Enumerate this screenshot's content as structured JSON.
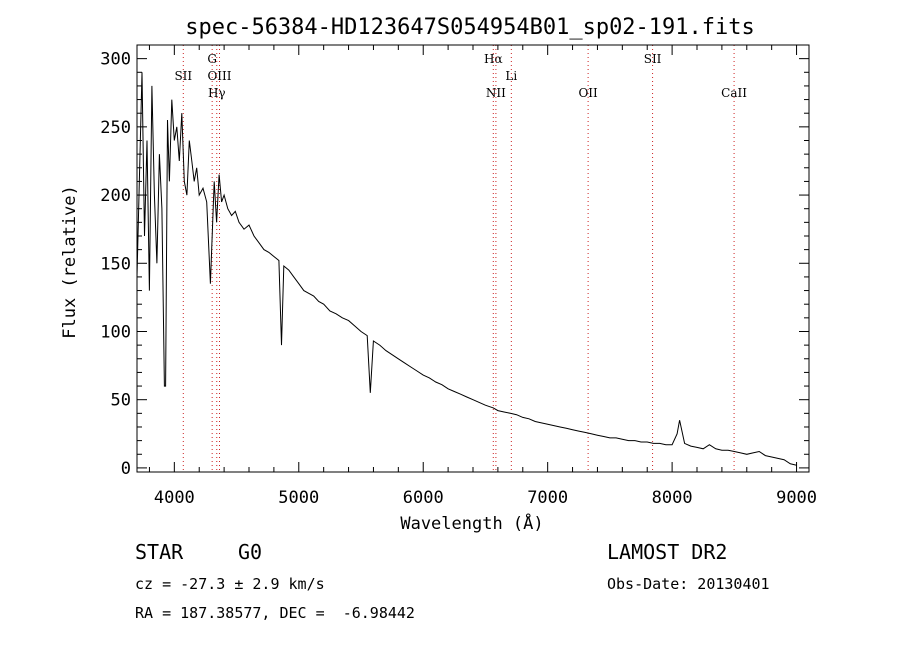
{
  "chart_data": {
    "type": "line",
    "title": "spec-56384-HD123647S054954B01_sp02-191.fits",
    "xlabel": "Wavelength (Å)",
    "ylabel": "Flux (relative)",
    "xlim": [
      3700,
      9100
    ],
    "ylim": [
      -3,
      310
    ],
    "x_ticks": [
      4000,
      5000,
      6000,
      7000,
      8000,
      9000
    ],
    "y_ticks": [
      0,
      50,
      100,
      150,
      200,
      250,
      300
    ],
    "grid": false,
    "series": [
      {
        "x": [
          3700,
          3720,
          3740,
          3760,
          3780,
          3800,
          3820,
          3840,
          3860,
          3880,
          3900,
          3920,
          3930,
          3945,
          3960,
          3980,
          4000,
          4020,
          4040,
          4060,
          4080,
          4101,
          4120,
          4140,
          4160,
          4180,
          4200,
          4230,
          4260,
          4290,
          4320,
          4340,
          4360,
          4380,
          4400,
          4430,
          4460,
          4490,
          4520,
          4560,
          4600,
          4640,
          4680,
          4720,
          4760,
          4800,
          4840,
          4861,
          4880,
          4920,
          4960,
          5000,
          5040,
          5080,
          5120,
          5160,
          5200,
          5250,
          5300,
          5350,
          5400,
          5450,
          5500,
          5550,
          5575,
          5600,
          5650,
          5700,
          5750,
          5800,
          5850,
          5900,
          5950,
          6000,
          6050,
          6100,
          6150,
          6200,
          6250,
          6300,
          6350,
          6400,
          6450,
          6500,
          6563,
          6600,
          6650,
          6700,
          6750,
          6800,
          6850,
          6900,
          6950,
          7000,
          7050,
          7100,
          7150,
          7200,
          7250,
          7300,
          7350,
          7400,
          7450,
          7500,
          7550,
          7600,
          7650,
          7700,
          7750,
          7800,
          7850,
          7900,
          7950,
          8000,
          8040,
          8060,
          8100,
          8150,
          8200,
          8250,
          8300,
          8350,
          8400,
          8450,
          8500,
          8550,
          8600,
          8650,
          8700,
          8750,
          8800,
          8850,
          8900,
          8950,
          9000
        ],
        "y": [
          140,
          215,
          290,
          170,
          240,
          130,
          280,
          200,
          150,
          230,
          190,
          60,
          60,
          255,
          210,
          270,
          240,
          250,
          225,
          260,
          210,
          200,
          240,
          225,
          210,
          220,
          200,
          205,
          195,
          135,
          210,
          180,
          215,
          195,
          200,
          190,
          185,
          188,
          180,
          175,
          178,
          170,
          165,
          160,
          158,
          155,
          152,
          90,
          148,
          145,
          140,
          135,
          130,
          128,
          126,
          122,
          120,
          115,
          113,
          110,
          108,
          104,
          100,
          97,
          55,
          93,
          90,
          86,
          83,
          80,
          77,
          74,
          71,
          68,
          66,
          63,
          61,
          58,
          56,
          54,
          52,
          50,
          48,
          46,
          44,
          42,
          41,
          40,
          39,
          37,
          36,
          34,
          33,
          32,
          31,
          30,
          29,
          28,
          27,
          26,
          25,
          24,
          23,
          22,
          22,
          21,
          20,
          20,
          19,
          19,
          18,
          18,
          17,
          17,
          25,
          35,
          18,
          16,
          15,
          14,
          17,
          14,
          13,
          13,
          12,
          11,
          10,
          11,
          12,
          9,
          8,
          7,
          6,
          3,
          2
        ]
      }
    ],
    "lines": [
      {
        "label": "SII",
        "x": 4072
      },
      {
        "label": "G",
        "x": 4304
      },
      {
        "label": "OIII",
        "x": 4363
      },
      {
        "label": "Hγ",
        "x": 4341
      },
      {
        "label": "Hα",
        "x": 6563
      },
      {
        "label": "NII",
        "x": 6584
      },
      {
        "label": "Li",
        "x": 6708
      },
      {
        "label": "OII",
        "x": 7325
      },
      {
        "label": "SII",
        "x": 7843
      },
      {
        "label": "CaII",
        "x": 8498
      }
    ]
  },
  "info": {
    "object_type": "STAR",
    "subclass": "G0",
    "survey": "LAMOST DR2",
    "redshift_line": "cz = -27.3 ± 2.9 km/s",
    "obs_date_line": "Obs-Date: 20130401",
    "coords_line": "RA = 187.38577, DEC =  -6.98442"
  },
  "colors": {
    "axes": "#000000",
    "spectrum": "#000000",
    "line_markers": "#cc2222"
  }
}
